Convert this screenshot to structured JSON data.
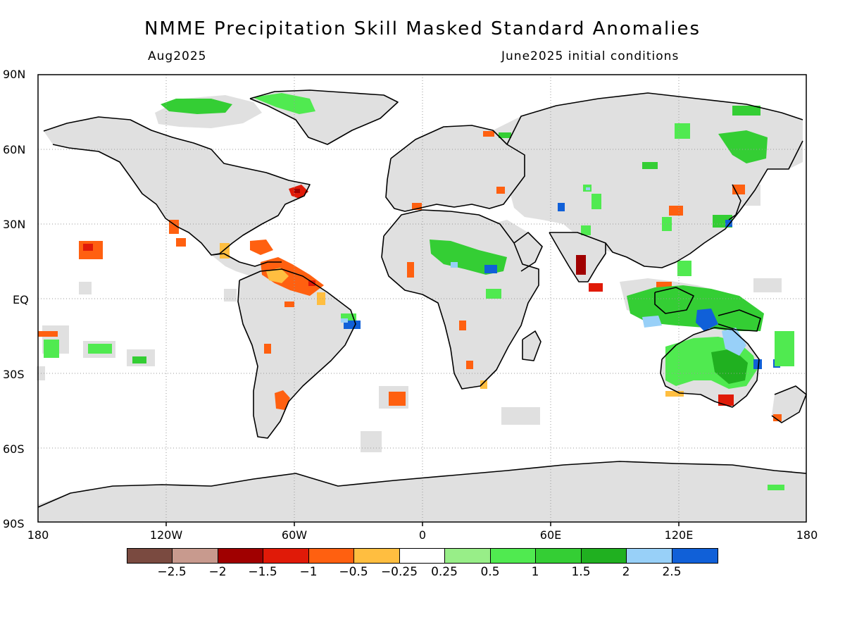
{
  "title": "NMME Precipitation Skill Masked Standard Anomalies",
  "subtitle_left": "Aug2025",
  "subtitle_right": "June2025 initial conditions",
  "lat_labels": [
    "90N",
    "60N",
    "30N",
    "EQ",
    "30S",
    "60S",
    "90S"
  ],
  "lon_labels": [
    "180",
    "120W",
    "60W",
    "0",
    "60E",
    "120E",
    "180"
  ],
  "colors": {
    "land_mask": "#e0e0e0",
    "coastline": "#000000",
    "grid": "#9a9a9a"
  },
  "legend": {
    "colors": [
      "#7a4a40",
      "#c89a8e",
      "#a00000",
      "#e01a08",
      "#ff6010",
      "#ffbe40",
      "#ffffff",
      "#98ee88",
      "#50ea50",
      "#34ce34",
      "#20b020",
      "#98d0f8",
      "#1060d8"
    ],
    "labels": [
      "−2.5",
      "−2",
      "−1.5",
      "−1",
      "−0.5",
      "−0.25",
      "0.25",
      "0.5",
      "1",
      "1.5",
      "2",
      "2.5"
    ]
  }
}
